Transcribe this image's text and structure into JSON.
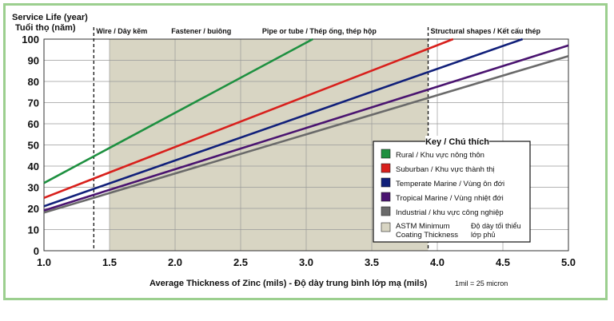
{
  "chart_data": {
    "type": "line",
    "ylabel_line1": "Service Life (year)",
    "ylabel_line2": "Tuổi thọ (năm)",
    "xlabel": "Average Thickness of Zinc (mils) - Độ dày trung bình lớp mạ (mils)",
    "unit_note": "1mil = 25 micron",
    "xlim": [
      1.0,
      5.0
    ],
    "ylim": [
      0,
      100
    ],
    "x_ticks": [
      "1.0",
      "1.5",
      "2.0",
      "2.5",
      "3.0",
      "3.5",
      "4.0",
      "4.5",
      "5.0"
    ],
    "y_ticks": [
      "0",
      "10",
      "20",
      "30",
      "40",
      "50",
      "60",
      "70",
      "80",
      "90",
      "100"
    ],
    "shaded_region": {
      "x0": 1.5,
      "x1": 3.93,
      "color": "#d8d5c3"
    },
    "category_lines": [
      {
        "x": 1.38,
        "label": "Wire / Dây kẽm",
        "dashed": true
      },
      {
        "x": 2.2,
        "label": "Fastener / buiông",
        "dashed": false
      },
      {
        "x": 3.1,
        "label": "Pipe or tube / Thép ống, thép hộp",
        "dashed": false
      },
      {
        "x": 3.93,
        "label": "Structural shapes / Kết cấu thép",
        "dashed": true
      }
    ],
    "series": [
      {
        "name": "Rural / Khu vực nông thôn",
        "color": "#1e9040",
        "x": [
          1.0,
          3.05
        ],
        "y": [
          32,
          100
        ]
      },
      {
        "name": "Suburban / Khu vực thành thị",
        "color": "#d8201c",
        "x": [
          1.0,
          4.12
        ],
        "y": [
          25,
          100
        ]
      },
      {
        "name": "Temperate Marine / Vùng ôn đới",
        "color": "#11207a",
        "x": [
          1.0,
          4.65
        ],
        "y": [
          21,
          100
        ]
      },
      {
        "name": "Tropical Marine / Vùng nhiệt đới",
        "color": "#4a1470",
        "x": [
          1.0,
          5.0
        ],
        "y": [
          19,
          97
        ]
      },
      {
        "name": "Industrial / khu vực công nghiệp",
        "color": "#6a6a6a",
        "x": [
          1.0,
          5.0
        ],
        "y": [
          18,
          92
        ]
      }
    ],
    "legend": {
      "title": "Key / Chú thích",
      "shade_label_line1": "ASTM Minimum",
      "shade_label_line2": "Coating Thickness",
      "shade_note_line1": "Độ dày tối thiểu",
      "shade_note_line2": "lớp phủ"
    },
    "grid": true
  }
}
